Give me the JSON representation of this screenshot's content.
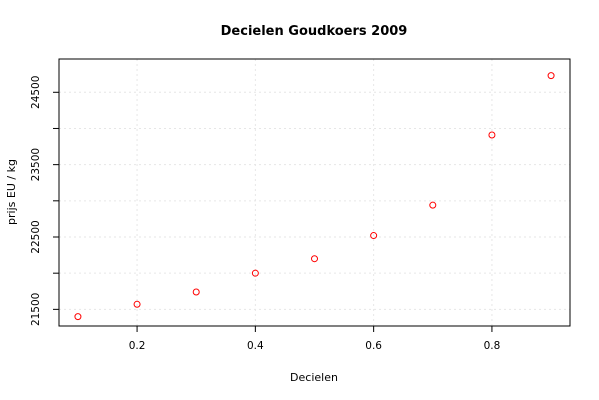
{
  "chart_data": {
    "type": "scatter",
    "title": "Decielen Goudkoers 2009",
    "xlabel": "Decielen",
    "ylabel": "prijs EU / kg",
    "x": [
      0.1,
      0.2,
      0.3,
      0.4,
      0.5,
      0.6,
      0.7,
      0.8,
      0.9
    ],
    "y": [
      21400,
      21570,
      21740,
      22000,
      22200,
      22520,
      22940,
      23910,
      24730
    ],
    "xlim": [
      0.068,
      0.932
    ],
    "ylim": [
      21270,
      24960
    ],
    "x_ticks": [
      0.2,
      0.4,
      0.6,
      0.8
    ],
    "x_tick_labels": [
      "0.2",
      "0.4",
      "0.6",
      "0.8"
    ],
    "y_ticks": [
      21500,
      22000,
      22500,
      23000,
      23500,
      24000,
      24500
    ],
    "y_tick_labels": [
      "21500",
      "",
      "22500",
      "",
      "23500",
      "",
      "24500"
    ],
    "grid": true,
    "point_color": "#ff0000"
  }
}
